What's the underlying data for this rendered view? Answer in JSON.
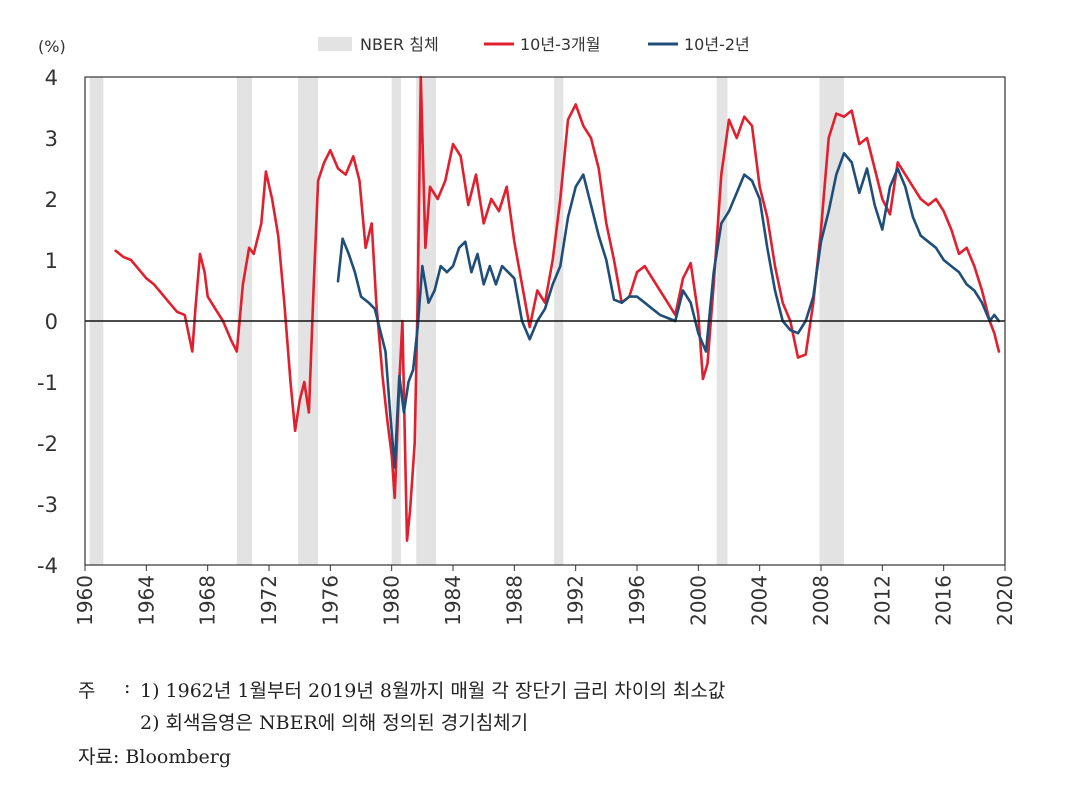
{
  "chart_data": {
    "type": "line",
    "unit_label": "(%)",
    "ylim": [
      -4,
      4
    ],
    "yticks": [
      4,
      3,
      2,
      1,
      0,
      -1,
      -2,
      -3,
      -4
    ],
    "xlim": [
      1960,
      2020
    ],
    "xticks": [
      1960,
      1964,
      1968,
      1972,
      1976,
      1980,
      1984,
      1988,
      1992,
      1996,
      2000,
      2004,
      2008,
      2012,
      2016,
      2020
    ],
    "legend": [
      {
        "name": "NBER 침체",
        "kind": "band",
        "color": "#e3e3e3"
      },
      {
        "name": "10년-3개월",
        "kind": "line",
        "color": "#e0202e"
      },
      {
        "name": "10년-2년",
        "kind": "line",
        "color": "#1f4e79"
      }
    ],
    "recessions": [
      [
        1960.3,
        1961.2
      ],
      [
        1969.9,
        1970.9
      ],
      [
        1973.9,
        1975.2
      ],
      [
        1980.0,
        1980.6
      ],
      [
        1981.6,
        1982.9
      ],
      [
        1990.6,
        1991.2
      ],
      [
        2001.2,
        2001.9
      ],
      [
        2007.9,
        2009.5
      ]
    ],
    "series": [
      {
        "name": "10년-3개월",
        "color": "#e0202e",
        "x": [
          1962.0,
          1962.5,
          1963.0,
          1963.5,
          1964.0,
          1964.5,
          1965.0,
          1965.5,
          1966.0,
          1966.5,
          1967.0,
          1967.2,
          1967.5,
          1967.8,
          1968.0,
          1968.5,
          1969.0,
          1969.5,
          1969.9,
          1970.3,
          1970.7,
          1971.0,
          1971.5,
          1971.8,
          1972.2,
          1972.6,
          1973.0,
          1973.4,
          1973.7,
          1974.0,
          1974.3,
          1974.6,
          1974.9,
          1975.2,
          1975.6,
          1976.0,
          1976.5,
          1977.0,
          1977.5,
          1977.9,
          1978.3,
          1978.7,
          1979.0,
          1979.4,
          1979.7,
          1980.0,
          1980.2,
          1980.5,
          1980.7,
          1981.0,
          1981.2,
          1981.5,
          1981.7,
          1981.9,
          1982.2,
          1982.5,
          1983.0,
          1983.5,
          1984.0,
          1984.5,
          1985.0,
          1985.5,
          1986.0,
          1986.5,
          1987.0,
          1987.5,
          1988.0,
          1988.5,
          1989.0,
          1989.5,
          1990.0,
          1990.5,
          1991.0,
          1991.5,
          1992.0,
          1992.5,
          1993.0,
          1993.5,
          1994.0,
          1994.5,
          1995.0,
          1995.5,
          1996.0,
          1996.5,
          1997.0,
          1997.5,
          1998.0,
          1998.5,
          1999.0,
          1999.5,
          2000.0,
          2000.3,
          2000.6,
          2001.0,
          2001.5,
          2002.0,
          2002.5,
          2003.0,
          2003.5,
          2004.0,
          2004.5,
          2005.0,
          2005.5,
          2006.0,
          2006.5,
          2007.0,
          2007.5,
          2008.0,
          2008.5,
          2009.0,
          2009.5,
          2010.0,
          2010.5,
          2011.0,
          2011.5,
          2012.0,
          2012.5,
          2013.0,
          2013.5,
          2014.0,
          2014.5,
          2015.0,
          2015.5,
          2016.0,
          2016.5,
          2017.0,
          2017.5,
          2018.0,
          2018.5,
          2019.0,
          2019.3,
          2019.6
        ],
        "values": [
          1.15,
          1.05,
          1.0,
          0.85,
          0.7,
          0.6,
          0.45,
          0.3,
          0.15,
          0.1,
          -0.5,
          0.2,
          1.1,
          0.8,
          0.4,
          0.2,
          0.0,
          -0.3,
          -0.5,
          0.6,
          1.2,
          1.1,
          1.6,
          2.45,
          2.0,
          1.4,
          0.3,
          -1.0,
          -1.8,
          -1.3,
          -1.0,
          -1.5,
          0.5,
          2.3,
          2.6,
          2.8,
          2.5,
          2.4,
          2.7,
          2.3,
          1.2,
          1.6,
          0.3,
          -0.9,
          -1.6,
          -2.2,
          -2.9,
          -1.0,
          0.0,
          -3.6,
          -3.1,
          -2.0,
          0.4,
          4.0,
          1.2,
          2.2,
          2.0,
          2.3,
          2.9,
          2.7,
          1.9,
          2.4,
          1.6,
          2.0,
          1.8,
          2.2,
          1.3,
          0.6,
          -0.1,
          0.5,
          0.3,
          1.0,
          2.0,
          3.3,
          3.55,
          3.2,
          3.0,
          2.5,
          1.6,
          1.0,
          0.3,
          0.4,
          0.8,
          0.9,
          0.7,
          0.5,
          0.3,
          0.1,
          0.7,
          0.95,
          0.1,
          -0.95,
          -0.7,
          0.6,
          2.4,
          3.3,
          3.0,
          3.35,
          3.2,
          2.2,
          1.7,
          0.9,
          0.3,
          0.0,
          -0.6,
          -0.55,
          0.3,
          1.5,
          3.0,
          3.4,
          3.35,
          3.45,
          2.9,
          3.0,
          2.5,
          2.0,
          1.75,
          2.6,
          2.4,
          2.2,
          2.0,
          1.9,
          2.0,
          1.8,
          1.5,
          1.1,
          1.2,
          0.9,
          0.5,
          0.0,
          -0.2,
          -0.5
        ]
      },
      {
        "name": "10년-2년",
        "color": "#1f4e79",
        "x": [
          1976.5,
          1976.8,
          1977.2,
          1977.6,
          1978.0,
          1978.5,
          1978.9,
          1979.3,
          1979.6,
          1979.9,
          1980.2,
          1980.5,
          1980.8,
          1981.1,
          1981.4,
          1981.7,
          1982.0,
          1982.4,
          1982.8,
          1983.2,
          1983.6,
          1984.0,
          1984.4,
          1984.8,
          1985.2,
          1985.6,
          1986.0,
          1986.4,
          1986.8,
          1987.2,
          1987.6,
          1988.0,
          1988.5,
          1989.0,
          1989.5,
          1990.0,
          1990.5,
          1991.0,
          1991.5,
          1992.0,
          1992.5,
          1993.0,
          1993.5,
          1994.0,
          1994.5,
          1995.0,
          1995.5,
          1996.0,
          1996.5,
          1997.0,
          1997.5,
          1998.0,
          1998.5,
          1999.0,
          1999.5,
          2000.0,
          2000.5,
          2001.0,
          2001.5,
          2002.0,
          2002.5,
          2003.0,
          2003.5,
          2004.0,
          2004.5,
          2005.0,
          2005.5,
          2006.0,
          2006.5,
          2007.0,
          2007.5,
          2008.0,
          2008.5,
          2009.0,
          2009.5,
          2010.0,
          2010.5,
          2011.0,
          2011.5,
          2012.0,
          2012.5,
          2013.0,
          2013.5,
          2014.0,
          2014.5,
          2015.0,
          2015.5,
          2016.0,
          2016.5,
          2017.0,
          2017.5,
          2018.0,
          2018.5,
          2019.0,
          2019.3,
          2019.6
        ],
        "values": [
          0.65,
          1.35,
          1.1,
          0.8,
          0.4,
          0.3,
          0.2,
          -0.2,
          -0.5,
          -1.5,
          -2.4,
          -0.9,
          -1.5,
          -1.0,
          -0.8,
          -0.1,
          0.9,
          0.3,
          0.5,
          0.9,
          0.8,
          0.9,
          1.2,
          1.3,
          0.8,
          1.1,
          0.6,
          0.9,
          0.6,
          0.9,
          0.8,
          0.7,
          0.0,
          -0.3,
          0.0,
          0.2,
          0.6,
          0.9,
          1.7,
          2.2,
          2.4,
          1.9,
          1.4,
          1.0,
          0.35,
          0.3,
          0.4,
          0.4,
          0.3,
          0.2,
          0.1,
          0.05,
          0.0,
          0.5,
          0.3,
          -0.2,
          -0.5,
          0.8,
          1.6,
          1.8,
          2.1,
          2.4,
          2.3,
          2.0,
          1.2,
          0.5,
          0.0,
          -0.15,
          -0.2,
          0.0,
          0.4,
          1.3,
          1.8,
          2.4,
          2.75,
          2.6,
          2.1,
          2.5,
          1.9,
          1.5,
          2.2,
          2.5,
          2.2,
          1.7,
          1.4,
          1.3,
          1.2,
          1.0,
          0.9,
          0.8,
          0.6,
          0.5,
          0.3,
          0.0,
          0.1,
          0.0
        ]
      }
    ]
  },
  "notes": {
    "label": "주",
    "colon": ":",
    "line1": "1) 1962년 1월부터 2019년 8월까지 매월 각 장단기 금리 차이의 최소값",
    "line2": "2) 회색음영은 NBER에 의해 정의된 경기침체기",
    "source": "자료: Bloomberg"
  }
}
